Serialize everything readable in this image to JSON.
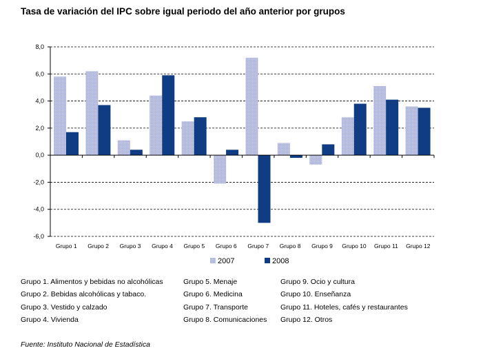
{
  "chart_data": {
    "type": "bar",
    "title": "Tasa de variación del IPC sobre igual periodo del año anterior por grupos",
    "categories": [
      "Grupo 1",
      "Grupo 2",
      "Grupo 3",
      "Grupo 4",
      "Grupo 5",
      "Grupo 6",
      "Grupo 7",
      "Grupo 8",
      "Grupo 9",
      "Grupo 10",
      "Grupo 11",
      "Grupo 12"
    ],
    "series": [
      {
        "name": "2007",
        "color": "#aab2dc",
        "values": [
          5.8,
          6.2,
          1.1,
          4.4,
          2.5,
          -2.1,
          7.2,
          0.9,
          -0.7,
          2.8,
          5.1,
          3.6
        ]
      },
      {
        "name": "2008",
        "color": "#0f3c82",
        "values": [
          1.7,
          3.7,
          0.4,
          5.9,
          2.8,
          0.4,
          -5.0,
          -0.2,
          0.8,
          3.8,
          4.1,
          3.5
        ]
      }
    ],
    "ylim": [
      -6,
      8
    ],
    "yticks": [
      8,
      6,
      4,
      2,
      0,
      -2,
      -4,
      -6
    ],
    "ytick_labels": [
      "8,0",
      "6,0",
      "4,0",
      "2,0",
      "0,0",
      "-2,0",
      "-4,0",
      "-6,0"
    ],
    "grid": "horizontal dashed",
    "legend_position": "bottom-center"
  },
  "notes": [
    "Grupo 1. Alimentos y bebidas no alcohólicas",
    "Grupo 2. Bebidas alcohólicas y  tabaco.",
    "Grupo 3. Vestido y calzado",
    "Grupo 4. Vivienda",
    "Grupo 5. Menaje",
    "Grupo 6. Medicina",
    "Grupo 7. Transporte",
    "Grupo 8. Comunicaciones",
    "Grupo 9. Ocio y cultura",
    "Grupo 10. Enseñanza",
    "Grupo 11. Hoteles, cafés y restaurantes",
    "Grupo 12. Otros"
  ],
  "source": "Fuente: Instituto Nacional de Estadística"
}
